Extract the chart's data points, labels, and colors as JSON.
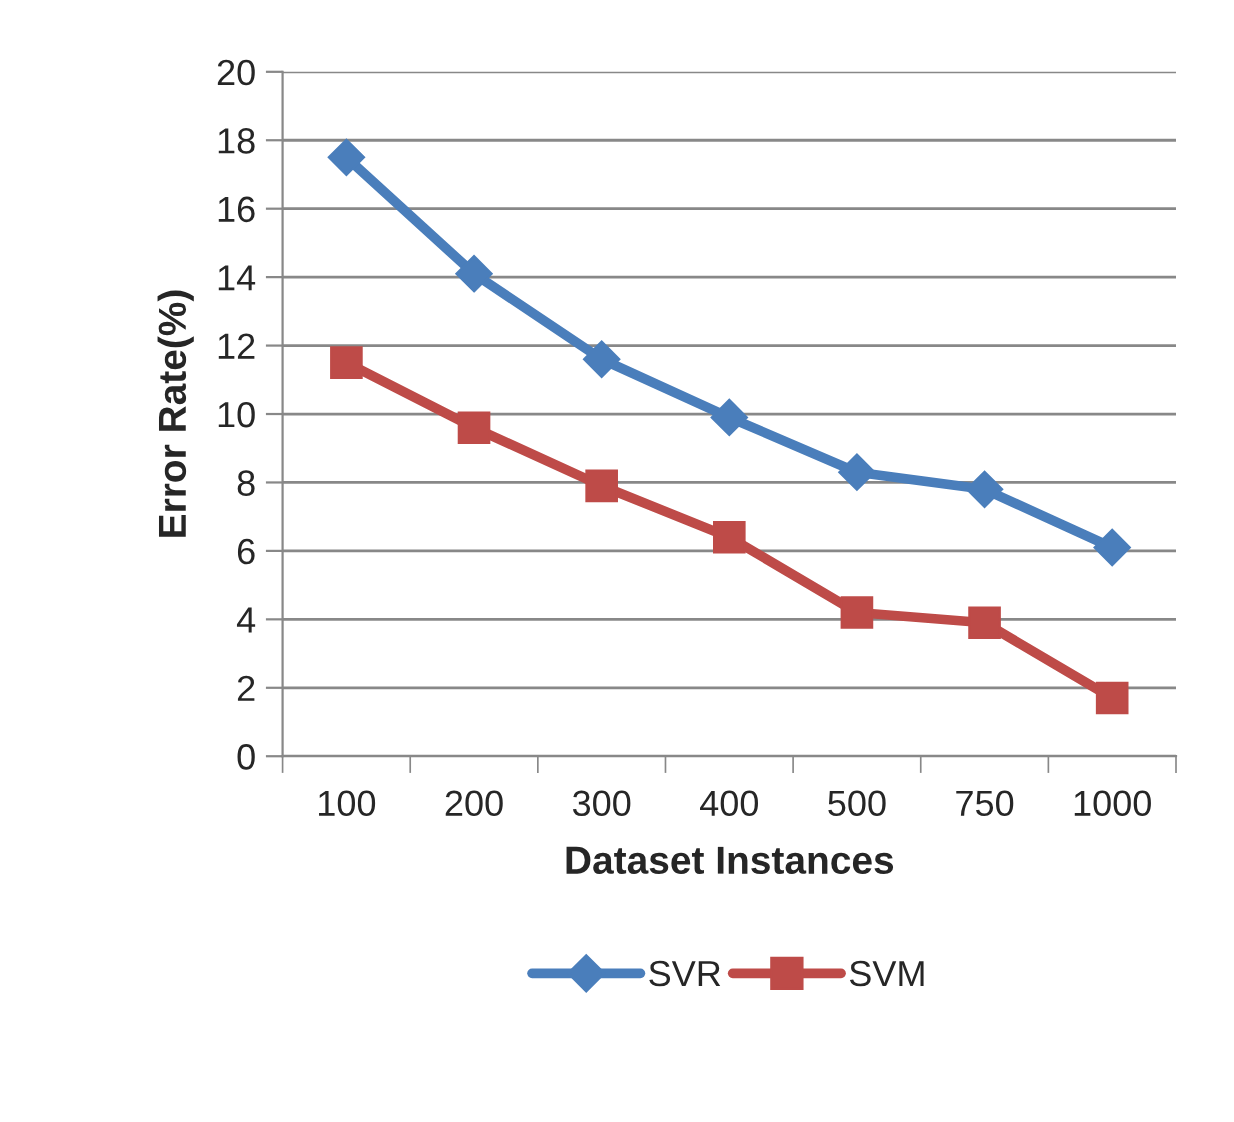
{
  "chart_data": {
    "type": "line",
    "xlabel": "Dataset Instances",
    "ylabel": "Error Rate(%)",
    "categories": [
      "100",
      "200",
      "300",
      "400",
      "500",
      "750",
      "1000"
    ],
    "series": [
      {
        "name": "SVR",
        "color": "#4a7ebb",
        "marker": "diamond",
        "values": [
          17.5,
          14.1,
          11.6,
          9.9,
          8.3,
          7.8,
          6.1
        ]
      },
      {
        "name": "SVM",
        "color": "#be4b48",
        "marker": "square",
        "values": [
          11.5,
          9.6,
          7.9,
          6.4,
          4.2,
          3.9,
          1.7
        ]
      }
    ],
    "ylim": [
      0,
      20
    ],
    "yticks": [
      0,
      2,
      4,
      6,
      8,
      10,
      12,
      14,
      16,
      18,
      20
    ],
    "grid": "y",
    "legend": "bottom",
    "line_style": "solid"
  }
}
